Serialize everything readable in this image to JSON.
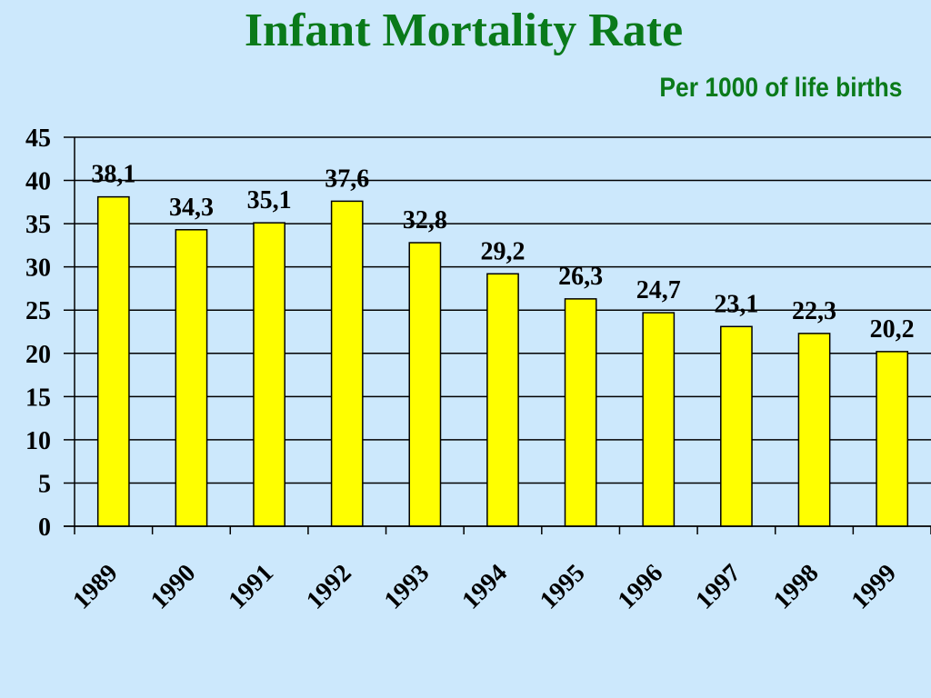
{
  "chart_data": {
    "type": "bar",
    "title": "Infant Mortality Rate",
    "subtitle": "Per 1000 of life births",
    "xlabel": "",
    "ylabel": "",
    "categories": [
      "1989",
      "1990",
      "1991",
      "1992",
      "1993",
      "1994",
      "1995",
      "1996",
      "1997",
      "1998",
      "1999"
    ],
    "values": [
      38.1,
      34.3,
      35.1,
      37.6,
      32.8,
      29.2,
      26.3,
      24.7,
      23.1,
      22.3,
      20.2
    ],
    "data_labels": [
      "38,1",
      "34,3",
      "35,1",
      "37,6",
      "32,8",
      "29,2",
      "26,3",
      "24,7",
      "23,1",
      "22,3",
      "20,2"
    ],
    "ylim": [
      0,
      45
    ],
    "yticks": [
      "0",
      "5",
      "10",
      "15",
      "20",
      "25",
      "30",
      "35",
      "40",
      "45"
    ],
    "grid": true,
    "legend": "none",
    "bar_color": "#ffff00",
    "bar_edge_color": "#000000",
    "title_color": "#0a7a1a",
    "background_color": "#cce8fc"
  }
}
